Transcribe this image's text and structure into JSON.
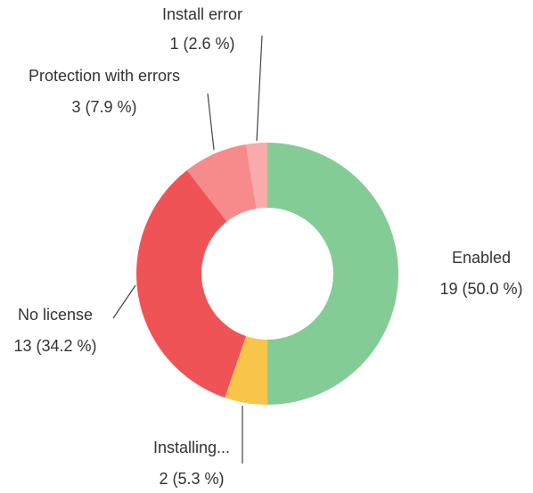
{
  "chart_data": {
    "type": "donut",
    "categories": [
      "Enabled",
      "Installing...",
      "No license",
      "Protection with errors",
      "Install error"
    ],
    "values": [
      19,
      2,
      13,
      3,
      1
    ],
    "value_labels": [
      "19 (50.0 %)",
      "2 (5.3 %)",
      "13 (34.2 %)",
      "3 (7.9 %)",
      "1 (2.6 %)"
    ],
    "colors": [
      "#84cc96",
      "#f9c44a",
      "#f05355",
      "#f78b8b",
      "#f9aaaa"
    ]
  }
}
